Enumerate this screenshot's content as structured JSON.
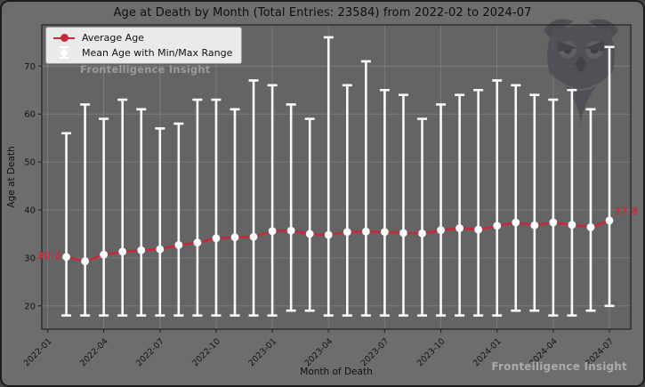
{
  "title": "Age at Death by Month (Total Entries: 23584) from 2022-02 to 2024-07",
  "legend": {
    "items": [
      {
        "label": "Average Age",
        "type": "line-with-marker",
        "color": "#c62a3a"
      },
      {
        "label": "Mean Age with Min/Max Range",
        "type": "errorbar",
        "color": "#ffffff"
      }
    ]
  },
  "watermark": {
    "top_left": "Frontelligence Insight",
    "bottom_right": "Frontelligence Insight"
  },
  "chart_data": {
    "type": "line",
    "title": "Age at Death by Month (Total Entries: 23584) from 2022-02 to 2024-07",
    "xlabel": "Month of Death",
    "ylabel": "Age at Death",
    "ylim": [
      15,
      78.5
    ],
    "grid": true,
    "legend_position": "upper left",
    "x_tick_labels": [
      "2022-01",
      "2022-04",
      "2022-07",
      "2022-10",
      "2023-01",
      "2023-04",
      "2023-07",
      "2023-10",
      "2024-01",
      "2024-04",
      "2024-07"
    ],
    "y_ticks": [
      20,
      30,
      40,
      50,
      60,
      70
    ],
    "months": [
      "2022-02",
      "2022-03",
      "2022-04",
      "2022-05",
      "2022-06",
      "2022-07",
      "2022-08",
      "2022-09",
      "2022-10",
      "2022-11",
      "2022-12",
      "2023-01",
      "2023-02",
      "2023-03",
      "2023-04",
      "2023-05",
      "2023-06",
      "2023-07",
      "2023-08",
      "2023-09",
      "2023-10",
      "2023-11",
      "2023-12",
      "2024-01",
      "2024-02",
      "2024-03",
      "2024-04",
      "2024-05",
      "2024-06",
      "2024-07"
    ],
    "series": [
      {
        "name": "Average Age",
        "values": [
          30.2,
          29.3,
          30.7,
          31.3,
          31.6,
          31.8,
          32.7,
          33.2,
          34.1,
          34.3,
          34.4,
          35.6,
          35.7,
          35.0,
          34.8,
          35.4,
          35.5,
          35.4,
          35.2,
          35.1,
          35.8,
          36.2,
          35.9,
          36.7,
          37.4,
          36.8,
          37.4,
          36.9,
          36.4,
          37.8
        ]
      },
      {
        "name": "Max Age",
        "values": [
          56,
          62,
          59,
          63,
          61,
          57,
          58,
          63,
          63,
          61,
          67,
          66,
          62,
          59,
          76,
          66,
          71,
          65,
          64,
          59,
          62,
          64,
          65,
          67,
          66,
          64,
          63,
          65,
          61,
          74
        ]
      },
      {
        "name": "Min Age",
        "values": [
          18,
          18,
          18,
          18,
          18,
          18,
          18,
          18,
          18,
          18,
          18,
          18,
          19,
          19,
          18,
          18,
          18,
          18,
          18,
          18,
          18,
          18,
          18,
          18,
          19,
          19,
          18,
          18,
          19,
          20
        ]
      }
    ],
    "annotations": {
      "first_point": "30.2",
      "last_point": "37.8"
    },
    "colors": {
      "mean_line": "#c62a3a",
      "error_bar": "#fafafa",
      "annotation": "#c5303c"
    }
  }
}
